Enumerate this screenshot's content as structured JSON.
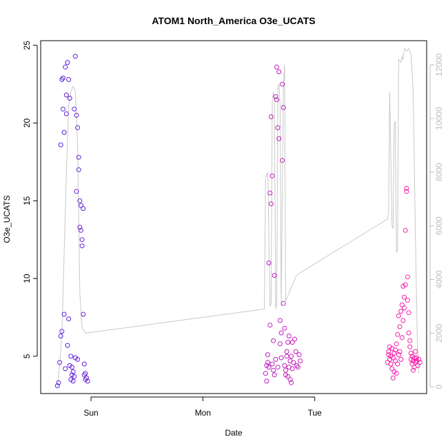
{
  "chart_data": {
    "type": "scatter",
    "title": "ATOM1 North_America O3e_UCATS",
    "xlabel": "Date",
    "ylabel": "O3e_UCATS",
    "x_ticks": [
      "Sun",
      "Mon",
      "Tue"
    ],
    "y_ticks": [
      "5",
      "10",
      "15",
      "20",
      "25"
    ],
    "ylim": [
      2.6,
      25.3
    ],
    "y2_ticks": [
      "0",
      "2000",
      "4000",
      "6000",
      "8000",
      "10000",
      "12000"
    ],
    "y2lim": [
      -250,
      12900
    ],
    "colors": {
      "series_start": "#5a1fe0",
      "series_end": "#ff1aa8",
      "line": "#c8c8c8"
    },
    "scatter_series": [
      {
        "x": [
          -0.3,
          -0.29,
          -0.28,
          -0.27,
          -0.27,
          -0.26,
          -0.26,
          -0.25,
          -0.25,
          -0.24,
          -0.24,
          -0.23,
          -0.23,
          -0.22,
          -0.22,
          -0.21,
          -0.21,
          -0.2,
          -0.2,
          -0.19,
          -0.19,
          -0.18,
          -0.18,
          -0.17,
          -0.17,
          -0.16,
          -0.16,
          -0.15,
          -0.15,
          -0.14,
          -0.14,
          -0.13,
          -0.13,
          -0.12,
          -0.12,
          -0.11,
          -0.11,
          -0.1,
          -0.1,
          -0.09,
          -0.09,
          -0.08,
          -0.08,
          -0.07,
          -0.07,
          -0.06,
          -0.06,
          -0.05,
          -0.05,
          -0.04,
          -0.03
        ],
        "y": [
          3.1,
          3.3,
          4.6,
          6.3,
          18.6,
          22.8,
          6.6,
          20.9,
          22.9,
          7.7,
          19.4,
          23.6,
          4.2,
          20.6,
          21.8,
          5.7,
          23.9,
          7.4,
          22.8,
          4.4,
          21.6,
          3.5,
          5.0,
          3.8,
          4.3,
          3.4,
          4.0,
          20.9,
          3.7,
          4.9,
          24.3,
          20.5,
          15.6,
          19.7,
          4.8,
          17.8,
          17.0,
          15.0,
          13.3,
          14.7,
          13.1,
          12.5,
          12.1,
          14.5,
          7.7,
          4.5,
          3.8,
          3.5,
          3.9,
          3.6,
          3.4
        ]
      },
      {
        "x": [
          1.56,
          1.57,
          1.57,
          1.58,
          1.58,
          1.59,
          1.59,
          1.6,
          1.6,
          1.61,
          1.61,
          1.62,
          1.62,
          1.63,
          1.63,
          1.64,
          1.64,
          1.65,
          1.65,
          1.66,
          1.66,
          1.67,
          1.67,
          1.68,
          1.68,
          1.69,
          1.69,
          1.7,
          1.7,
          1.71,
          1.71,
          1.72,
          1.72,
          1.73,
          1.73,
          1.74,
          1.74,
          1.75,
          1.75,
          1.76,
          1.76,
          1.77,
          1.77,
          1.78,
          1.78,
          1.79,
          1.79,
          1.8,
          1.8,
          1.81,
          1.82,
          1.83,
          1.84,
          1.85,
          1.86,
          1.87
        ],
        "y": [
          3.9,
          3.4,
          4.4,
          5.1,
          4.6,
          4.3,
          11.0,
          7.0,
          15.5,
          20.4,
          14.8,
          16.6,
          4.5,
          4.1,
          6.0,
          3.8,
          10.2,
          4.8,
          21.7,
          23.6,
          21.5,
          19.7,
          4.3,
          19.0,
          23.3,
          5.8,
          7.3,
          4.9,
          6.5,
          17.6,
          22.5,
          8.4,
          21.0,
          4.4,
          6.8,
          3.8,
          4.1,
          5.0,
          5.3,
          3.7,
          5.9,
          4.3,
          6.3,
          4.7,
          3.5,
          5.0,
          3.3,
          4.2,
          5.9,
          4.6,
          6.1,
          5.3,
          4.4,
          4.3,
          5.1,
          4.7
        ]
      },
      {
        "x": [
          2.65,
          2.66,
          2.66,
          2.67,
          2.67,
          2.68,
          2.68,
          2.69,
          2.69,
          2.7,
          2.7,
          2.71,
          2.71,
          2.72,
          2.72,
          2.73,
          2.73,
          2.74,
          2.74,
          2.75,
          2.75,
          2.76,
          2.76,
          2.77,
          2.77,
          2.78,
          2.78,
          2.79,
          2.79,
          2.8,
          2.8,
          2.81,
          2.81,
          2.82,
          2.82,
          2.83,
          2.83,
          2.84,
          2.84,
          2.85,
          2.85,
          2.86,
          2.86,
          2.87,
          2.87,
          2.88,
          2.88,
          2.89,
          2.89,
          2.9,
          2.9,
          2.91,
          2.91,
          2.92,
          2.93,
          2.94
        ],
        "y": [
          4.6,
          5.3,
          5.1,
          5.6,
          4.8,
          4.5,
          5.0,
          4.2,
          5.5,
          3.6,
          4.9,
          5.2,
          4.0,
          4.7,
          5.4,
          3.9,
          5.8,
          4.5,
          6.4,
          5.1,
          7.6,
          6.9,
          5.3,
          7.9,
          4.8,
          8.3,
          6.2,
          7.3,
          9.5,
          8.8,
          8.1,
          9.6,
          13.1,
          15.6,
          15.8,
          10.1,
          8.6,
          7.8,
          6.5,
          6.0,
          5.6,
          5.2,
          4.8,
          5.0,
          4.5,
          4.1,
          4.7,
          4.9,
          4.3,
          4.6,
          5.3,
          4.9,
          4.7,
          4.4,
          4.8,
          4.6
        ]
      }
    ],
    "line_series": {
      "x": [
        -0.3,
        -0.28,
        -0.26,
        -0.24,
        -0.22,
        -0.2,
        -0.18,
        -0.16,
        -0.14,
        -0.12,
        -0.1,
        -0.08,
        -0.06,
        -0.05,
        1.55,
        1.56,
        1.58,
        1.6,
        1.61,
        1.62,
        1.63,
        1.64,
        1.65,
        1.66,
        1.67,
        1.68,
        1.69,
        1.7,
        1.72,
        1.73,
        1.74,
        1.75,
        1.76,
        1.77,
        1.78,
        1.79,
        1.8,
        1.81,
        1.82,
        1.83,
        1.85,
        2.65,
        2.66,
        2.67,
        2.69,
        2.7,
        2.71,
        2.72,
        2.73,
        2.74,
        2.75,
        2.77,
        2.78,
        2.79,
        2.8,
        2.81,
        2.82,
        2.84,
        2.86,
        2.88,
        2.9,
        2.92,
        2.93
      ],
      "y": [
        0,
        800,
        2000,
        5000,
        8000,
        10500,
        11000,
        11200,
        11000,
        9000,
        3500,
        2200,
        2100,
        2000,
        2900,
        7800,
        8000,
        3000,
        3100,
        10600,
        11000,
        10800,
        2900,
        3100,
        11100,
        11300,
        10500,
        3000,
        11200,
        12000,
        3200,
        3300,
        3400,
        3500,
        3600,
        3700,
        3800,
        3900,
        4000,
        4100,
        4200,
        6250,
        6500,
        11000,
        6000,
        5900,
        9800,
        9900,
        5000,
        5100,
        12200,
        12100,
        12300,
        12200,
        12600,
        12600,
        12500,
        12600,
        12400,
        11000,
        5500,
        1000,
        500
      ]
    }
  }
}
